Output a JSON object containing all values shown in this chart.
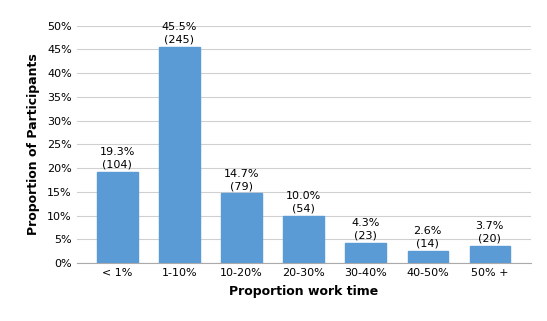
{
  "categories": [
    "< 1%",
    "1-10%",
    "10-20%",
    "20-30%",
    "30-40%",
    "40-50%",
    "50% +"
  ],
  "values": [
    19.3,
    45.5,
    14.7,
    10.0,
    4.3,
    2.6,
    3.7
  ],
  "counts": [
    104,
    245,
    79,
    54,
    23,
    14,
    20
  ],
  "bar_color": "#5B9BD5",
  "xlabel": "Proportion work time",
  "ylabel": "Proportion of Participants",
  "ylim": [
    0,
    50
  ],
  "yticks": [
    0,
    5,
    10,
    15,
    20,
    25,
    30,
    35,
    40,
    45,
    50
  ],
  "bar_width": 0.65,
  "grid_color": "#d0d0d0",
  "background_color": "#ffffff",
  "label_fontsize": 8,
  "axis_label_fontsize": 9,
  "tick_fontsize": 8
}
